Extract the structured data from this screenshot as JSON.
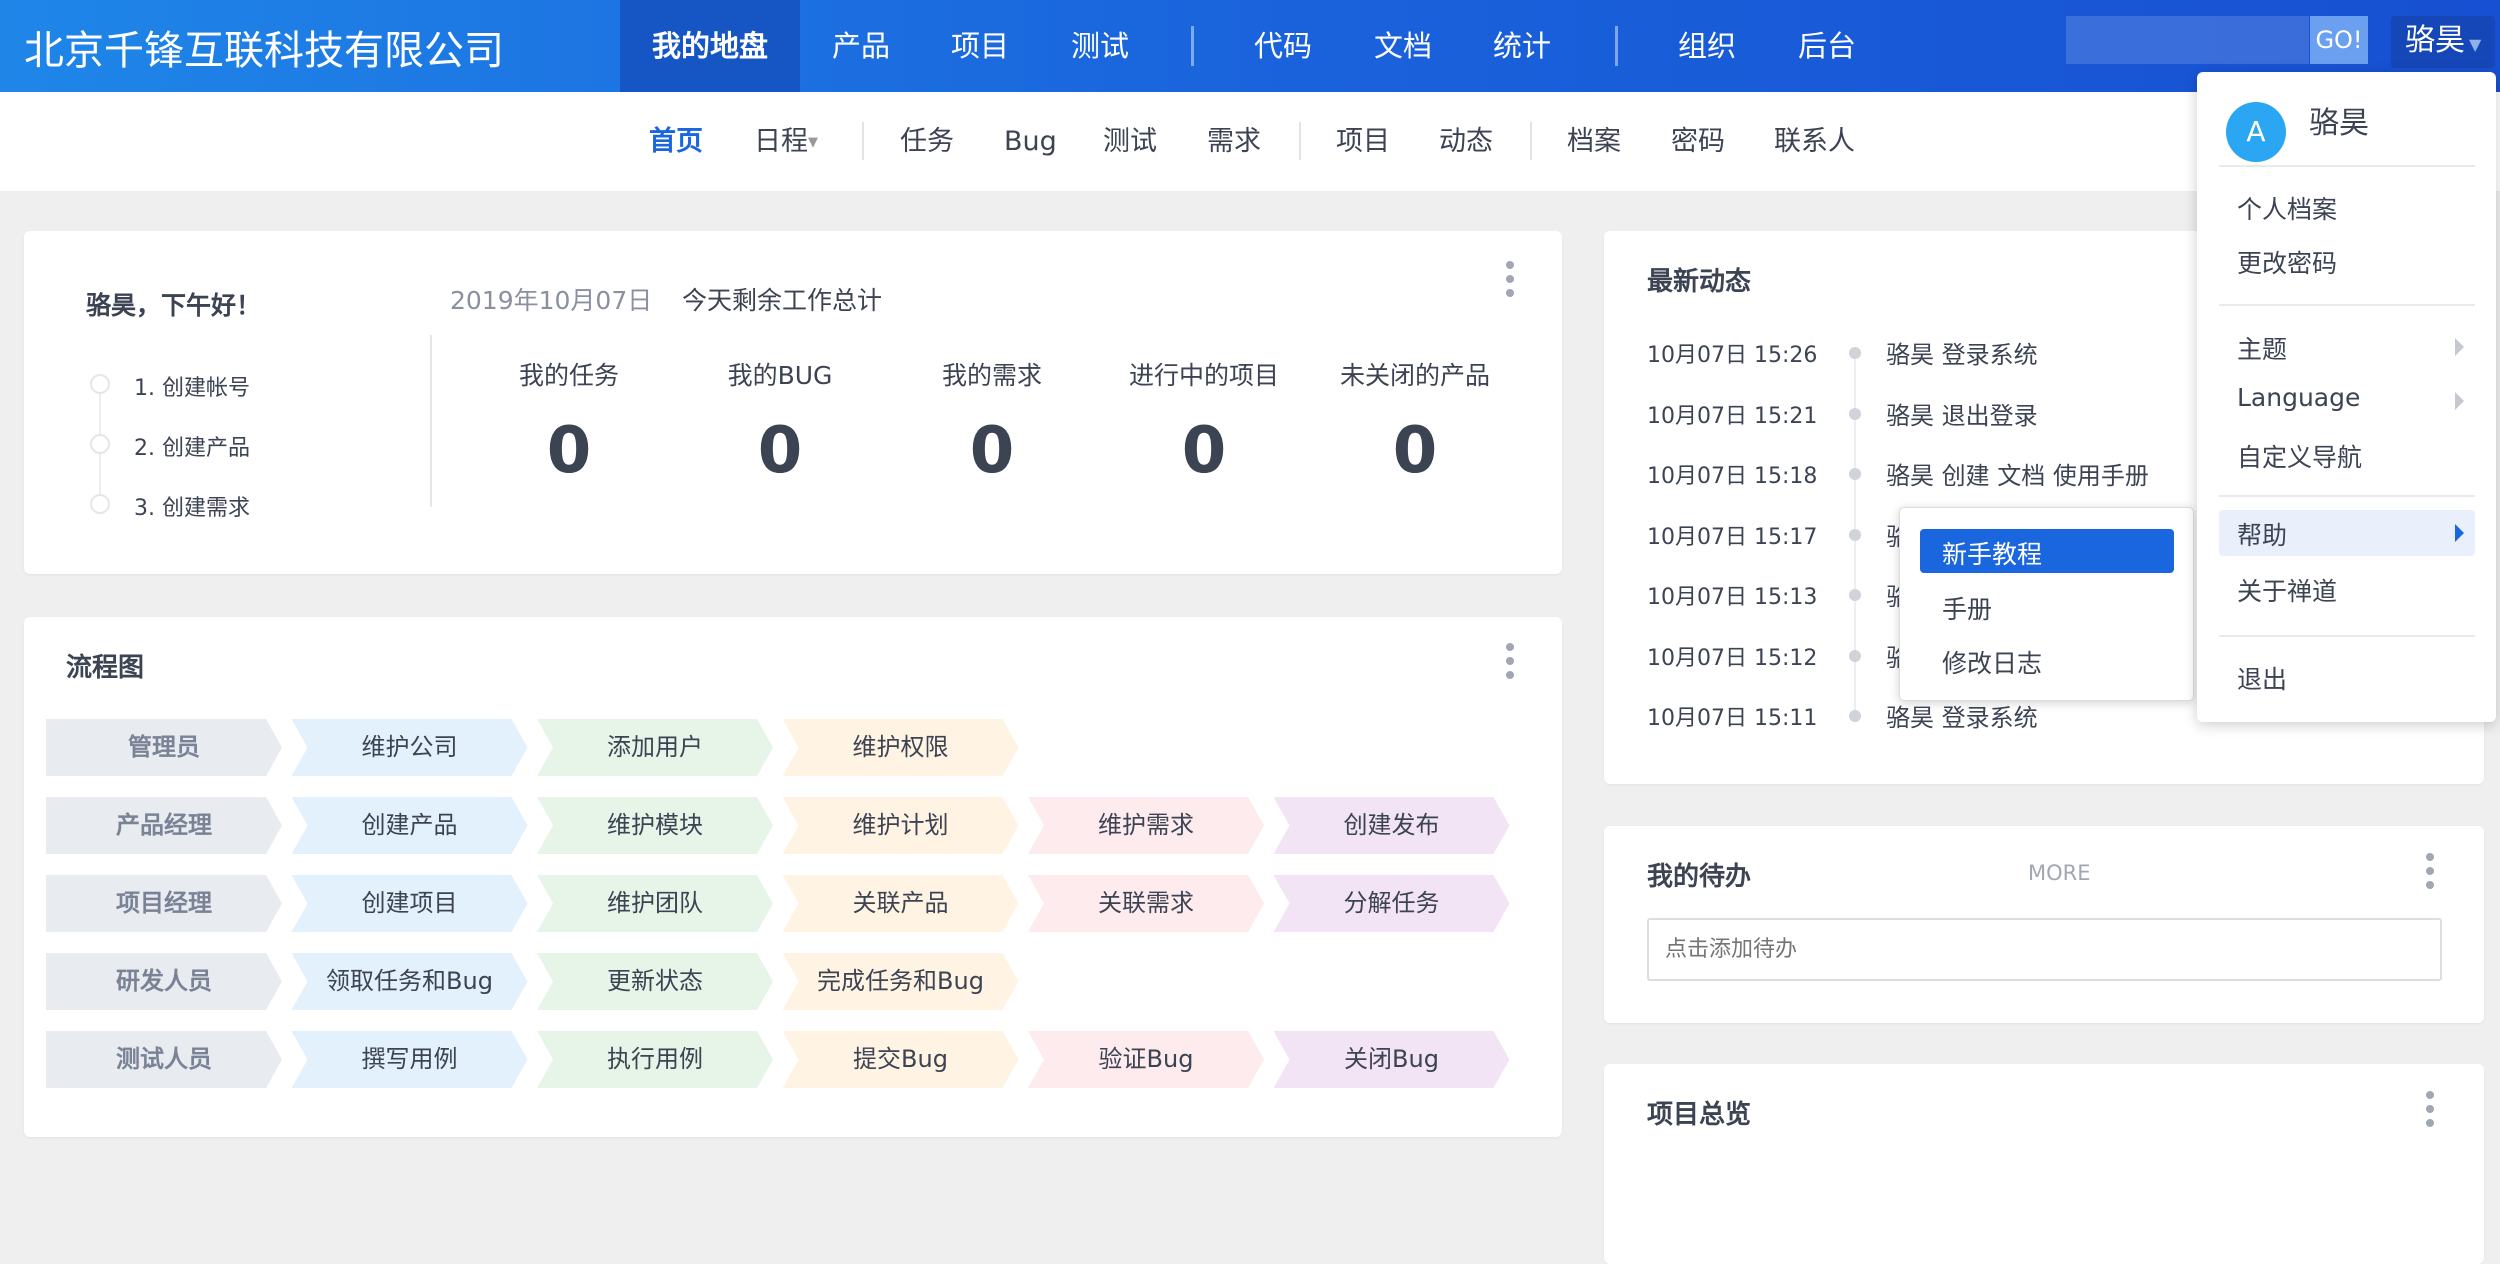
{
  "header": {
    "company": "北京千锋互联科技有限公司",
    "nav": [
      "我的地盘",
      "产品",
      "项目",
      "测试",
      "代码",
      "文档",
      "统计",
      "组织",
      "后台"
    ],
    "active": "我的地盘",
    "search_value": "",
    "go_label": "GO!",
    "user": "骆昊"
  },
  "subnav": {
    "items": [
      "首页",
      "日程",
      "任务",
      "Bug",
      "测试",
      "需求",
      "项目",
      "动态",
      "档案",
      "密码",
      "联系人"
    ],
    "active": "首页"
  },
  "welcome": {
    "greeting": "骆昊，下午好！",
    "steps": [
      "1. 创建帐号",
      "2. 创建产品",
      "3. 创建需求"
    ],
    "date": "2019年10月07日",
    "summary_title": "今天剩余工作总计",
    "stats": [
      {
        "label": "我的任务",
        "value": "0"
      },
      {
        "label": "我的BUG",
        "value": "0"
      },
      {
        "label": "我的需求",
        "value": "0"
      },
      {
        "label": "进行中的项目",
        "value": "0"
      },
      {
        "label": "未关闭的产品",
        "value": "0"
      }
    ]
  },
  "flow": {
    "title": "流程图",
    "rows": [
      {
        "role": "管理员",
        "steps": [
          "维护公司",
          "添加用户",
          "维护权限"
        ]
      },
      {
        "role": "产品经理",
        "steps": [
          "创建产品",
          "维护模块",
          "维护计划",
          "维护需求",
          "创建发布"
        ]
      },
      {
        "role": "项目经理",
        "steps": [
          "创建项目",
          "维护团队",
          "关联产品",
          "关联需求",
          "分解任务"
        ]
      },
      {
        "role": "研发人员",
        "steps": [
          "领取任务和Bug",
          "更新状态",
          "完成任务和Bug"
        ]
      },
      {
        "role": "测试人员",
        "steps": [
          "撰写用例",
          "执行用例",
          "提交Bug",
          "验证Bug",
          "关闭Bug"
        ]
      }
    ]
  },
  "activity": {
    "title": "最新动态",
    "items": [
      {
        "time": "10月07日 15:26",
        "text": "骆昊 登录系统"
      },
      {
        "time": "10月07日 15:21",
        "text": "骆昊 退出登录"
      },
      {
        "time": "10月07日 15:18",
        "text": "骆昊 创建 文档 使用手册"
      },
      {
        "time": "10月07日 15:17",
        "text": "骆"
      },
      {
        "time": "10月07日 15:13",
        "text": "骆"
      },
      {
        "time": "10月07日 15:12",
        "text": "骆"
      },
      {
        "time": "10月07日 15:11",
        "text": "骆昊 登录系统"
      }
    ]
  },
  "todo": {
    "title": "我的待办",
    "more": "MORE",
    "placeholder": "点击添加待办"
  },
  "project_overview": {
    "title": "项目总览"
  },
  "user_menu": {
    "avatar_letter": "A",
    "name": "骆昊",
    "items": [
      "个人档案",
      "更改密码",
      "主题",
      "Language",
      "自定义导航",
      "帮助",
      "关于禅道",
      "退出"
    ],
    "highlighted": "帮助"
  },
  "help_submenu": {
    "items": [
      "新手教程",
      "手册",
      "修改日志"
    ],
    "active": "新手教程"
  },
  "colors": {
    "header": "#1a63dc",
    "accent": "#1a66de",
    "background": "#efefef"
  }
}
